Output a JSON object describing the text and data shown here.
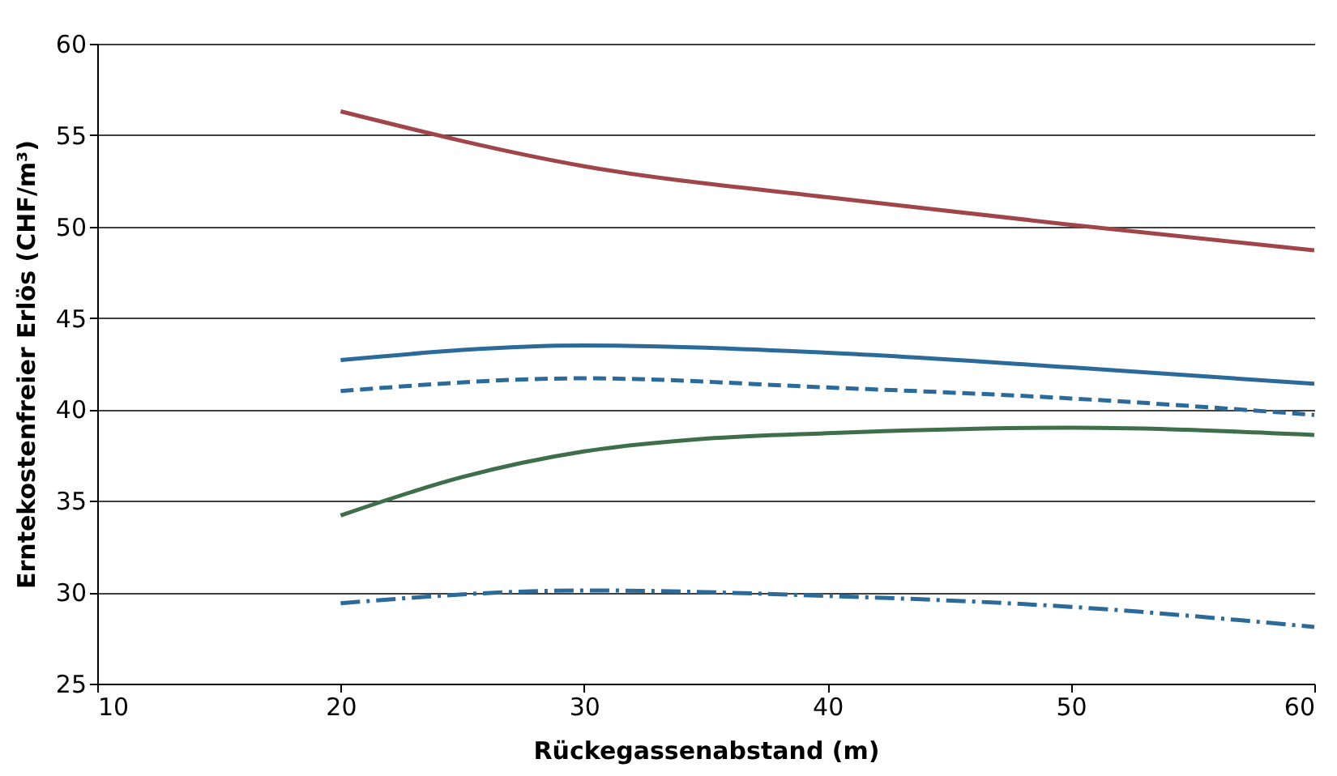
{
  "chart_data": {
    "type": "line",
    "xlabel": "Rückegassenabstand (m)",
    "ylabel": "Erntekostenfreier Erlös (CHF/m³)",
    "x": [
      20,
      30,
      40,
      50,
      60
    ],
    "series": [
      {
        "color": "#a0464b",
        "line_style": "solid",
        "values": [
          56.3,
          53.3,
          51.6,
          50.1,
          48.7
        ]
      },
      {
        "color": "#2c6a9a",
        "line_style": "solid",
        "values": [
          42.7,
          43.5,
          43.1,
          42.3,
          41.4
        ]
      },
      {
        "color": "#2c6a9a",
        "line_style": "dashed",
        "values": [
          41.0,
          41.7,
          41.2,
          40.6,
          39.7
        ]
      },
      {
        "color": "#3f6e4a",
        "line_style": "solid",
        "x": [
          20,
          25,
          30,
          35,
          40,
          50,
          60
        ],
        "values": [
          34.2,
          36.3,
          37.7,
          38.4,
          38.7,
          39.0,
          38.6
        ]
      },
      {
        "color": "#2c6a9a",
        "line_style": "dotted",
        "values": [
          29.4,
          30.1,
          29.8,
          29.2,
          28.1
        ]
      }
    ],
    "xlim": [
      10,
      60
    ],
    "xticks": [
      10,
      20,
      30,
      40,
      50,
      60
    ],
    "ylim": [
      25,
      60
    ],
    "yticks": [
      25,
      30,
      35,
      40,
      45,
      50,
      55,
      60
    ],
    "grid": "y",
    "legend": false,
    "marker": "none"
  }
}
